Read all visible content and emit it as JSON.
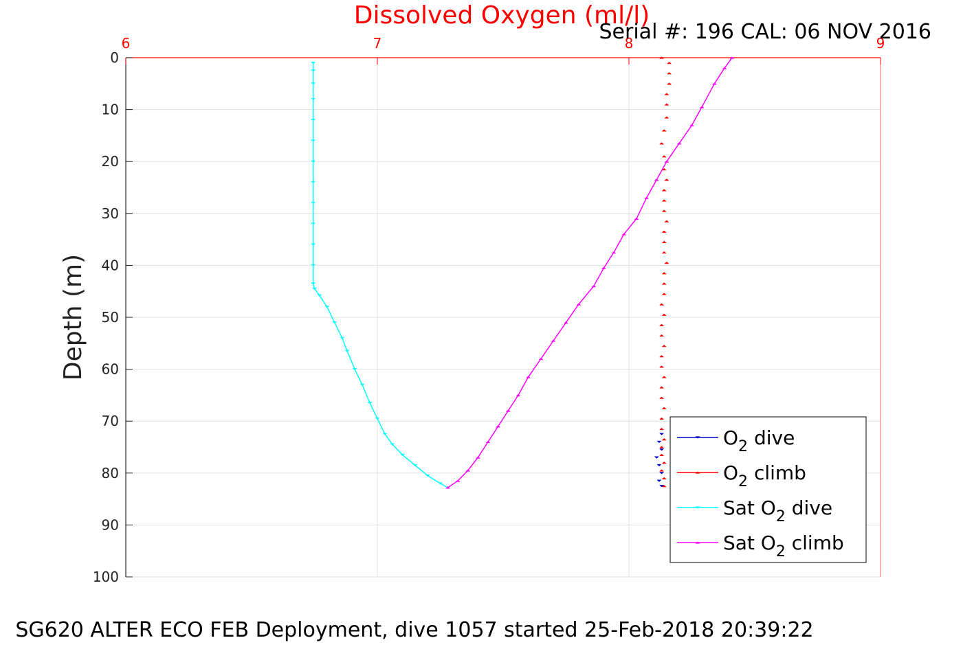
{
  "chart_data": {
    "type": "scatter",
    "title": "Dissolved Oxygen (ml/l)",
    "subtitle": "Serial #: 196  CAL: 06 NOV 2016",
    "xlabel": "",
    "ylabel": "Depth (m)",
    "caption": "SG620 ALTER ECO FEB Deployment, dive 1057 started 25-Feb-2018 20:39:22",
    "x_axis_position": "top",
    "y_axis_reversed": true,
    "xlim": [
      6,
      9
    ],
    "ylim": [
      0,
      100
    ],
    "x_ticks": [
      "6",
      "7",
      "8",
      "9"
    ],
    "y_ticks": [
      "0",
      "10",
      "20",
      "30",
      "40",
      "50",
      "60",
      "70",
      "80",
      "90",
      "100"
    ],
    "grid": true,
    "legend_position": "bottom-right",
    "colors": {
      "title": "#ff0000",
      "x_ticks": "#ff0000",
      "o2_dive": "#0000cc",
      "o2_climb": "#ff0000",
      "sat_dive": "#00ffff",
      "sat_climb": "#ff00ff",
      "grid": "#e0e0e0"
    },
    "series": [
      {
        "name": "O2 dive",
        "label_main": "O",
        "label_sub": "2",
        "label_tail": " dive",
        "color": "#0000cc",
        "marker": "triangle-down",
        "line": false,
        "points": [
          [
            8.13,
            72.5
          ],
          [
            8.12,
            74
          ],
          [
            8.13,
            75.5
          ],
          [
            8.11,
            77
          ],
          [
            8.12,
            78.5
          ],
          [
            8.13,
            80
          ],
          [
            8.12,
            81.5
          ],
          [
            8.13,
            82.5
          ]
        ]
      },
      {
        "name": "O2 climb",
        "label_main": "O",
        "label_sub": "2",
        "label_tail": " climb",
        "color": "#ff0000",
        "marker": "triangle-up",
        "line": false,
        "points": [
          [
            8.14,
            82.5
          ],
          [
            8.14,
            81
          ],
          [
            8.13,
            79.5
          ],
          [
            8.14,
            78
          ],
          [
            8.13,
            76.5
          ],
          [
            8.13,
            75
          ],
          [
            8.14,
            73.5
          ],
          [
            8.13,
            71.5
          ],
          [
            8.13,
            69.5
          ],
          [
            8.14,
            67.5
          ],
          [
            8.13,
            65.5
          ],
          [
            8.13,
            63.5
          ],
          [
            8.14,
            61.5
          ],
          [
            8.13,
            59.5
          ],
          [
            8.13,
            57.5
          ],
          [
            8.14,
            55.5
          ],
          [
            8.13,
            53.5
          ],
          [
            8.13,
            51.5
          ],
          [
            8.14,
            49.5
          ],
          [
            8.13,
            47.5
          ],
          [
            8.14,
            45.5
          ],
          [
            8.14,
            43.5
          ],
          [
            8.14,
            41.5
          ],
          [
            8.15,
            39.5
          ],
          [
            8.14,
            37.5
          ],
          [
            8.14,
            35.5
          ],
          [
            8.14,
            33.5
          ],
          [
            8.15,
            31.5
          ],
          [
            8.14,
            29.5
          ],
          [
            8.14,
            27.5
          ],
          [
            8.14,
            25.5
          ],
          [
            8.15,
            23.5
          ],
          [
            8.14,
            21.5
          ],
          [
            8.14,
            19
          ],
          [
            8.13,
            16.5
          ],
          [
            8.14,
            14
          ],
          [
            8.15,
            11.5
          ],
          [
            8.15,
            9
          ],
          [
            8.15,
            7
          ],
          [
            8.16,
            5
          ],
          [
            8.16,
            3
          ],
          [
            8.16,
            1
          ],
          [
            8.13,
            0
          ]
        ]
      },
      {
        "name": "Sat O2 dive",
        "label_main": "Sat O",
        "label_sub": "2",
        "label_tail": " dive",
        "color": "#00ffff",
        "marker": "triangle-down",
        "line": true,
        "points": [
          [
            6.745,
            1
          ],
          [
            6.745,
            2.5
          ],
          [
            6.745,
            5
          ],
          [
            6.745,
            8
          ],
          [
            6.745,
            12
          ],
          [
            6.745,
            16
          ],
          [
            6.745,
            20
          ],
          [
            6.745,
            24
          ],
          [
            6.745,
            28
          ],
          [
            6.745,
            32
          ],
          [
            6.745,
            36
          ],
          [
            6.745,
            40
          ],
          [
            6.745,
            43.5
          ],
          [
            6.75,
            44.5
          ],
          [
            6.77,
            45.8
          ],
          [
            6.8,
            48
          ],
          [
            6.83,
            51
          ],
          [
            6.86,
            54
          ],
          [
            6.88,
            56.5
          ],
          [
            6.91,
            60
          ],
          [
            6.94,
            63
          ],
          [
            6.97,
            66.5
          ],
          [
            7.0,
            69.5
          ],
          [
            7.03,
            72.5
          ],
          [
            7.06,
            74.5
          ],
          [
            7.1,
            76.5
          ],
          [
            7.15,
            78.5
          ],
          [
            7.2,
            80.5
          ],
          [
            7.25,
            82
          ],
          [
            7.28,
            82.8
          ]
        ]
      },
      {
        "name": "Sat O2 climb",
        "label_main": "Sat O",
        "label_sub": "2",
        "label_tail": " climb",
        "color": "#ff00ff",
        "marker": "triangle-up",
        "line": true,
        "points": [
          [
            7.28,
            82.8
          ],
          [
            7.32,
            81.5
          ],
          [
            7.36,
            79.5
          ],
          [
            7.4,
            77
          ],
          [
            7.44,
            74
          ],
          [
            7.48,
            71
          ],
          [
            7.52,
            68
          ],
          [
            7.56,
            65
          ],
          [
            7.6,
            61.5
          ],
          [
            7.65,
            58
          ],
          [
            7.7,
            54.5
          ],
          [
            7.75,
            51
          ],
          [
            7.8,
            47.5
          ],
          [
            7.86,
            44
          ],
          [
            7.9,
            40.5
          ],
          [
            7.94,
            37.5
          ],
          [
            7.98,
            34
          ],
          [
            8.03,
            31
          ],
          [
            8.07,
            27
          ],
          [
            8.11,
            23.5
          ],
          [
            8.15,
            20
          ],
          [
            8.2,
            16.5
          ],
          [
            8.25,
            13
          ],
          [
            8.29,
            9.5
          ],
          [
            8.34,
            5
          ],
          [
            8.38,
            2
          ],
          [
            8.41,
            0
          ]
        ]
      }
    ]
  }
}
